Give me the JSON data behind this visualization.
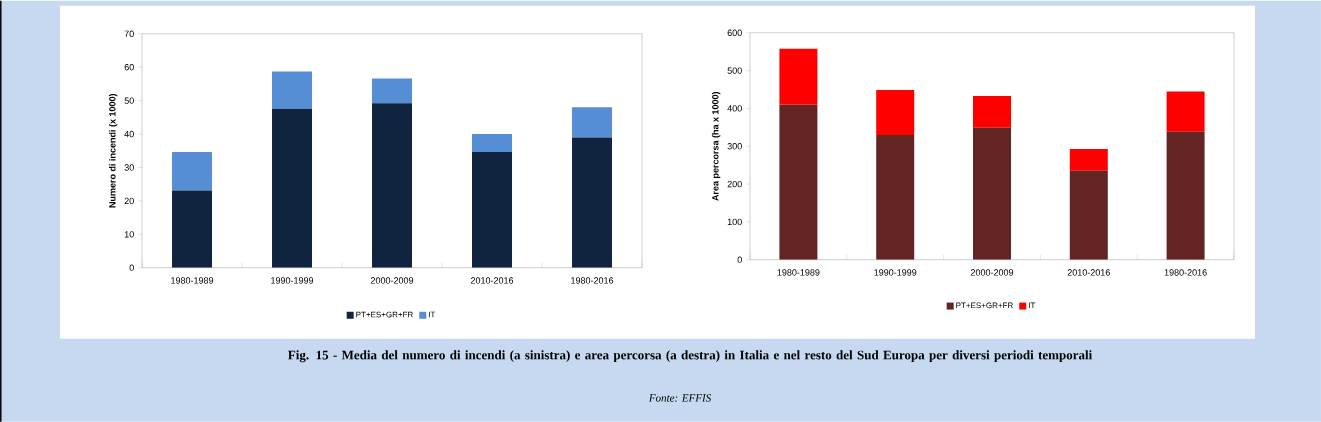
{
  "chart_data": [
    {
      "type": "bar",
      "stacked": true,
      "ylabel": "Numero di incendi (x 1000)",
      "categories": [
        "1980-1989",
        "1990-1999",
        "2000-2009",
        "2010-2016",
        "1980-2016"
      ],
      "series": [
        {
          "name": "PT+ES+GR+FR",
          "color": "#10243f",
          "values": [
            23.1,
            47.6,
            49.2,
            34.6,
            39.0
          ]
        },
        {
          "name": "IT",
          "color": "#558ed5",
          "values": [
            11.5,
            11.1,
            7.4,
            5.4,
            9.0
          ]
        }
      ],
      "ylim": [
        0,
        70
      ],
      "yticks": [
        0,
        10,
        20,
        30,
        40,
        50,
        60,
        70
      ],
      "legend": "bottom",
      "annotations": [
        "Fig. 15 - Media del numero di incendi (a sinistra) e area percorsa (a destra) in Italia e nel resto del Sud Europa per diversi periodi temporali",
        "Fonte: EFFIS"
      ]
    },
    {
      "type": "bar",
      "stacked": true,
      "ylabel": "Area percorsa (ha x 1000)",
      "categories": [
        "1980-1989",
        "1990-1999",
        "2000-2009",
        "2010-2016",
        "1980-2016"
      ],
      "series": [
        {
          "name": "PT+ES+GR+FR",
          "color": "#632523",
          "values": [
            410,
            330,
            349,
            235,
            338
          ]
        },
        {
          "name": "IT",
          "color": "#ff0000",
          "values": [
            148,
            119,
            84,
            58,
            107
          ]
        }
      ],
      "ylim": [
        0,
        600
      ],
      "yticks": [
        0,
        100,
        200,
        300,
        400,
        500,
        600
      ],
      "legend": "bottom"
    }
  ]
}
